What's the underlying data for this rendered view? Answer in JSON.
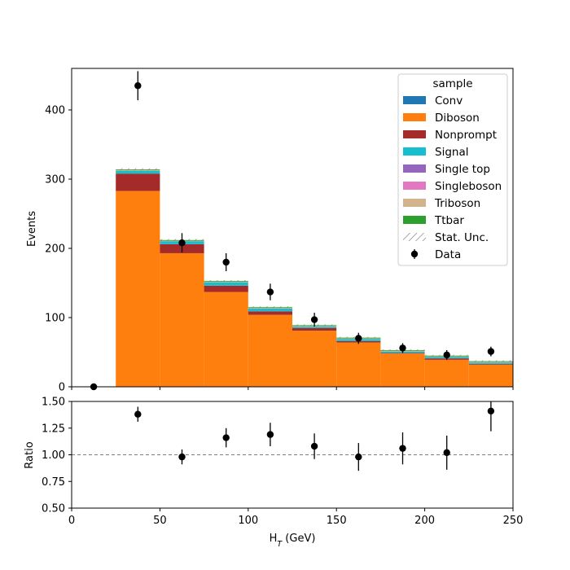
{
  "chart_data": [
    {
      "type": "bar",
      "panel": "main",
      "stacked": true,
      "ylabel": "Events",
      "xlim": [
        0,
        250
      ],
      "ylim": [
        0,
        460
      ],
      "yticks": [
        0,
        100,
        200,
        300,
        400
      ],
      "bin_edges": [
        0,
        25,
        50,
        75,
        100,
        125,
        150,
        175,
        200,
        225,
        250
      ],
      "legend_title": "sample",
      "legend_position": "top-right",
      "series": [
        {
          "name": "Conv",
          "color": "#1f77b4",
          "values": [
            0,
            0,
            0,
            0,
            0,
            0,
            0,
            0,
            0,
            0
          ]
        },
        {
          "name": "Diboson",
          "color": "#ff7f0e",
          "values": [
            0,
            283,
            193,
            137,
            104,
            81,
            64,
            48,
            39,
            32
          ]
        },
        {
          "name": "Nonprompt",
          "color": "#a52a2a",
          "values": [
            0,
            25,
            13,
            9,
            5,
            4,
            2,
            1,
            2,
            1
          ]
        },
        {
          "name": "Signal",
          "color": "#17becf",
          "values": [
            0,
            4,
            4,
            5,
            4,
            2,
            3,
            2,
            2,
            2
          ]
        },
        {
          "name": "Single top",
          "color": "#9467bd",
          "values": [
            0,
            0,
            0,
            0,
            0,
            0,
            0,
            0,
            0,
            0
          ]
        },
        {
          "name": "Singleboson",
          "color": "#e377c2",
          "values": [
            0,
            0,
            0,
            0,
            0,
            0,
            0,
            0,
            0,
            0
          ]
        },
        {
          "name": "Triboson",
          "color": "#d2b48c",
          "values": [
            0,
            1,
            1,
            1,
            1,
            1,
            1,
            1,
            1,
            1
          ]
        },
        {
          "name": "Ttbar",
          "color": "#2ca02c",
          "values": [
            0,
            1,
            1,
            1,
            1,
            1,
            1,
            1,
            1,
            1
          ]
        }
      ],
      "stat_unc_label": "Stat. Unc.",
      "data_label": "Data",
      "data": {
        "x": [
          12.5,
          37.5,
          62.5,
          87.5,
          112.5,
          137.5,
          162.5,
          187.5,
          212.5,
          237.5
        ],
        "y": [
          0,
          435,
          208,
          180,
          137,
          97,
          70,
          56,
          46,
          51
        ],
        "err": [
          0,
          21,
          14,
          13,
          12,
          10,
          8,
          7,
          7,
          7
        ]
      }
    },
    {
      "type": "scatter",
      "panel": "ratio",
      "xlabel": "H$_T$ (GeV)",
      "ylabel": "Ratio",
      "xlim": [
        0,
        250
      ],
      "ylim": [
        0.5,
        1.5
      ],
      "xticks": [
        0,
        50,
        100,
        150,
        200,
        250
      ],
      "yticks": [
        0.5,
        0.75,
        1.0,
        1.25,
        1.5
      ],
      "reference_line": 1.0,
      "x": [
        37.5,
        62.5,
        87.5,
        112.5,
        137.5,
        162.5,
        187.5,
        212.5,
        237.5
      ],
      "y": [
        1.38,
        0.98,
        1.16,
        1.19,
        1.08,
        0.98,
        1.06,
        1.02,
        1.41
      ],
      "err": [
        0.07,
        0.07,
        0.09,
        0.11,
        0.12,
        0.13,
        0.15,
        0.16,
        0.19
      ]
    }
  ]
}
